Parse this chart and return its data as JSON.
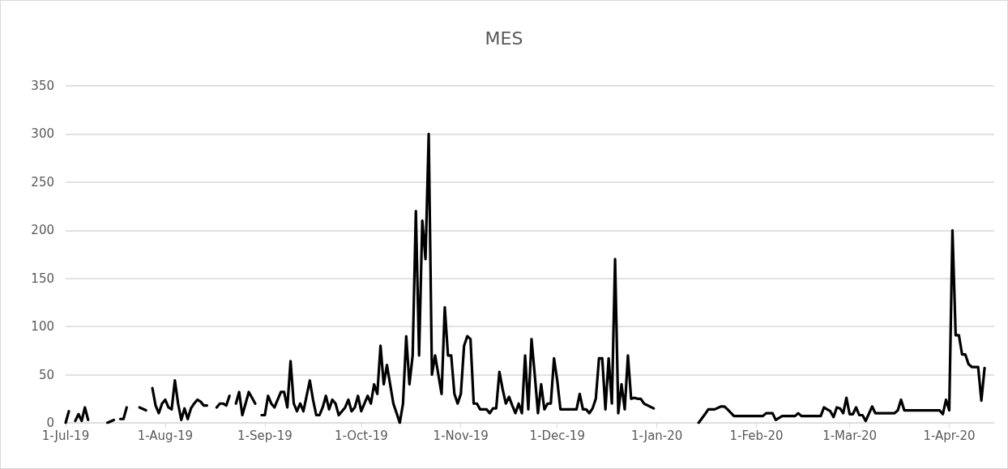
{
  "chart_data": {
    "type": "line",
    "title": "MES",
    "x": [
      "2019-07-01",
      "2019-07-02",
      "2019-07-03",
      "2019-07-04",
      "2019-07-05",
      "2019-07-06",
      "2019-07-07",
      "2019-07-08",
      "2019-07-11",
      "2019-07-14",
      "2019-07-16",
      "2019-07-17",
      "2019-07-18",
      "2019-07-19",
      "2019-07-20",
      "2019-07-22",
      "2019-07-24",
      "2019-07-26",
      "2019-07-27",
      "2019-07-28",
      "2019-07-29",
      "2019-07-30",
      "2019-07-31",
      "2019-08-01",
      "2019-08-02",
      "2019-08-03",
      "2019-08-04",
      "2019-08-05",
      "2019-08-06",
      "2019-08-07",
      "2019-08-08",
      "2019-08-09",
      "2019-08-10",
      "2019-08-11",
      "2019-08-12",
      "2019-08-13",
      "2019-08-14",
      "2019-08-15",
      "2019-08-17",
      "2019-08-18",
      "2019-08-19",
      "2019-08-20",
      "2019-08-21",
      "2019-08-22",
      "2019-08-23",
      "2019-08-24",
      "2019-08-25",
      "2019-08-26",
      "2019-08-27",
      "2019-08-28",
      "2019-08-29",
      "2019-08-30",
      "2019-08-31",
      "2019-09-01",
      "2019-09-02",
      "2019-09-03",
      "2019-09-04",
      "2019-09-05",
      "2019-09-06",
      "2019-09-07",
      "2019-09-08",
      "2019-09-09",
      "2019-09-10",
      "2019-09-11",
      "2019-09-12",
      "2019-09-13",
      "2019-09-14",
      "2019-09-15",
      "2019-09-16",
      "2019-09-17",
      "2019-09-18",
      "2019-09-19",
      "2019-09-20",
      "2019-09-21",
      "2019-09-22",
      "2019-09-23",
      "2019-09-24",
      "2019-09-25",
      "2019-09-26",
      "2019-09-27",
      "2019-09-28",
      "2019-09-29",
      "2019-09-30",
      "2019-10-01",
      "2019-10-02",
      "2019-10-03",
      "2019-10-04",
      "2019-10-05",
      "2019-10-06",
      "2019-10-07",
      "2019-10-08",
      "2019-10-09",
      "2019-10-10",
      "2019-10-11",
      "2019-10-12",
      "2019-10-13",
      "2019-10-14",
      "2019-10-15",
      "2019-10-16",
      "2019-10-17",
      "2019-10-18",
      "2019-10-19",
      "2019-10-20",
      "2019-10-21",
      "2019-10-22",
      "2019-10-23",
      "2019-10-24",
      "2019-10-25",
      "2019-10-26",
      "2019-10-27",
      "2019-10-28",
      "2019-10-29",
      "2019-10-30",
      "2019-10-31",
      "2019-11-01",
      "2019-11-02",
      "2019-11-03",
      "2019-11-04",
      "2019-11-05",
      "2019-11-06",
      "2019-11-07",
      "2019-11-09",
      "2019-11-10",
      "2019-11-11",
      "2019-11-12",
      "2019-11-13",
      "2019-11-14",
      "2019-11-15",
      "2019-11-16",
      "2019-11-17",
      "2019-11-18",
      "2019-11-19",
      "2019-11-20",
      "2019-11-21",
      "2019-11-22",
      "2019-11-23",
      "2019-11-24",
      "2019-11-25",
      "2019-11-26",
      "2019-11-27",
      "2019-11-28",
      "2019-11-29",
      "2019-11-30",
      "2019-12-01",
      "2019-12-02",
      "2019-12-07",
      "2019-12-08",
      "2019-12-09",
      "2019-12-10",
      "2019-12-11",
      "2019-12-12",
      "2019-12-13",
      "2019-12-14",
      "2019-12-15",
      "2019-12-16",
      "2019-12-17",
      "2019-12-18",
      "2019-12-19",
      "2019-12-20",
      "2019-12-21",
      "2019-12-22",
      "2019-12-23",
      "2019-12-24",
      "2019-12-25",
      "2019-12-26",
      "2019-12-27",
      "2019-12-28",
      "2019-12-31",
      "2020-01-05",
      "2020-01-14",
      "2020-01-16",
      "2020-01-17",
      "2020-01-19",
      "2020-01-21",
      "2020-01-22",
      "2020-01-23",
      "2020-01-25",
      "2020-02-03",
      "2020-02-04",
      "2020-02-06",
      "2020-02-07",
      "2020-02-09",
      "2020-02-13",
      "2020-02-14",
      "2020-02-15",
      "2020-02-21",
      "2020-02-22",
      "2020-02-23",
      "2020-02-24",
      "2020-02-25",
      "2020-02-26",
      "2020-02-27",
      "2020-02-28",
      "2020-02-29",
      "2020-03-01",
      "2020-03-02",
      "2020-03-03",
      "2020-03-04",
      "2020-03-05",
      "2020-03-06",
      "2020-03-08",
      "2020-03-09",
      "2020-03-15",
      "2020-03-16",
      "2020-03-17",
      "2020-03-18",
      "2020-03-29",
      "2020-03-30",
      "2020-03-31",
      "2020-04-01",
      "2020-04-02",
      "2020-04-03",
      "2020-04-04",
      "2020-04-05",
      "2020-04-06",
      "2020-04-07",
      "2020-04-08",
      "2020-04-10",
      "2020-04-11",
      "2020-04-12"
    ],
    "series": [
      {
        "color": "#000000",
        "values": [
          0,
          12,
          null,
          2,
          9,
          2,
          16,
          3,
          null,
          0,
          3,
          null,
          4,
          4,
          16,
          null,
          16,
          13,
          null,
          36,
          18,
          10,
          20,
          24,
          16,
          14,
          44,
          20,
          3,
          15,
          4,
          15,
          20,
          24,
          22,
          18,
          18,
          null,
          16,
          20,
          20,
          18,
          28,
          null,
          20,
          32,
          8,
          20,
          32,
          26,
          20,
          null,
          8,
          8,
          28,
          20,
          16,
          24,
          32,
          32,
          16,
          64,
          20,
          12,
          20,
          12,
          28,
          44,
          24,
          8,
          8,
          16,
          28,
          14,
          24,
          20,
          8,
          12,
          16,
          24,
          12,
          16,
          28,
          12,
          20,
          28,
          20,
          40,
          30,
          80,
          40,
          60,
          40,
          20,
          10,
          0,
          20,
          90,
          40,
          70,
          220,
          70,
          210,
          170,
          300,
          50,
          70,
          50,
          30,
          120,
          70,
          70,
          30,
          20,
          30,
          80,
          90,
          87,
          20,
          20,
          14,
          14,
          10,
          15,
          15,
          53,
          35,
          20,
          27,
          18,
          10,
          20,
          10,
          70,
          14,
          87,
          50,
          10,
          40,
          14,
          20,
          20,
          67,
          44,
          14,
          14,
          30,
          14,
          14,
          10,
          15,
          25,
          67,
          67,
          14,
          67,
          20,
          170,
          10,
          40,
          14,
          70,
          25,
          26,
          25,
          25,
          20,
          15,
          null,
          0,
          9,
          14,
          14,
          17,
          17,
          14,
          7,
          7,
          10,
          10,
          3,
          7,
          7,
          10,
          7,
          7,
          16,
          14,
          12,
          6,
          16,
          15,
          10,
          26,
          9,
          9,
          16,
          8,
          8,
          2,
          17,
          10,
          10,
          13,
          24,
          13,
          13,
          9,
          24,
          13,
          200,
          91,
          91,
          71,
          71,
          61,
          58,
          58,
          23,
          57
        ]
      }
    ],
    "xlim": [
      "2019-07-01",
      "2020-04-15"
    ],
    "xticks": [
      {
        "value": "2019-07-01",
        "label": "1-Jul-19"
      },
      {
        "value": "2019-08-01",
        "label": "1-Aug-19"
      },
      {
        "value": "2019-09-01",
        "label": "1-Sep-19"
      },
      {
        "value": "2019-10-01",
        "label": "1-Oct-19"
      },
      {
        "value": "2019-11-01",
        "label": "1-Nov-19"
      },
      {
        "value": "2019-12-01",
        "label": "1-Dec-19"
      },
      {
        "value": "2020-01-01",
        "label": "1-Jan-20"
      },
      {
        "value": "2020-02-01",
        "label": "1-Feb-20"
      },
      {
        "value": "2020-03-01",
        "label": "1-Mar-20"
      },
      {
        "value": "2020-04-01",
        "label": "1-Apr-20"
      }
    ],
    "ylim": [
      0,
      350
    ],
    "yticks": [
      0,
      50,
      100,
      150,
      200,
      250,
      300,
      350
    ],
    "grid": "y",
    "marker": "none",
    "line_style": "solid"
  }
}
